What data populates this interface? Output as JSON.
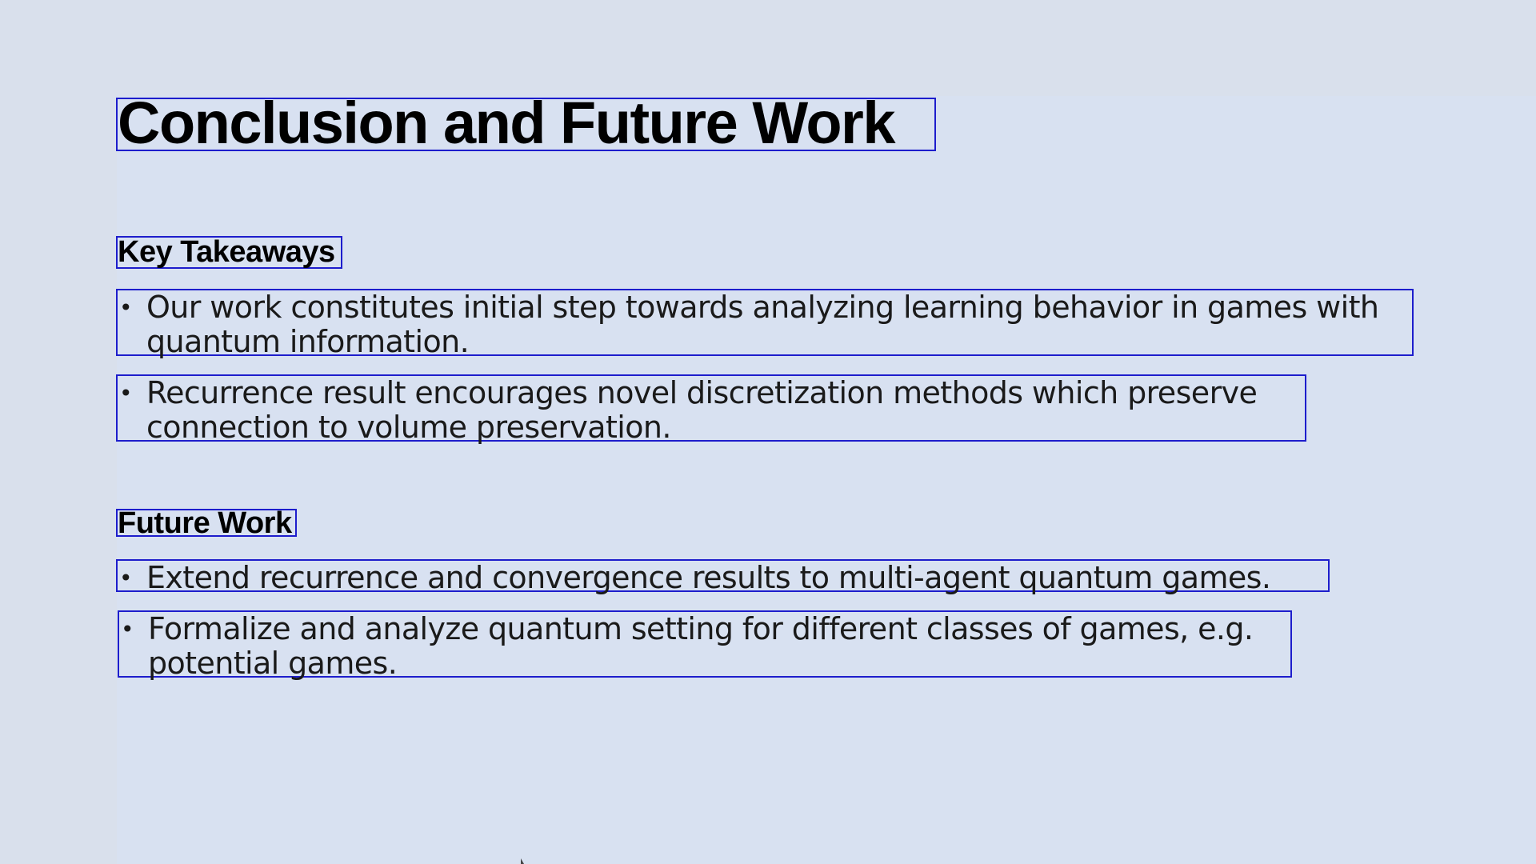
{
  "slide": {
    "title": "Conclusion and Future Work",
    "sections": [
      {
        "heading": "Key Takeaways",
        "bullets": [
          {
            "line1": "Our work constitutes initial step towards analyzing learning behavior in games with",
            "line2": "quantum information."
          },
          {
            "line1": "Recurrence result encourages novel discretization methods which preserve",
            "line2": "connection to volume preservation."
          }
        ]
      },
      {
        "heading": "Future Work",
        "bullets": [
          {
            "line1": "Extend recurrence and convergence results to multi-agent quantum games."
          },
          {
            "line1": "Formalize and analyze quantum setting for different classes of games, e.g.",
            "line2": "potential games."
          }
        ]
      }
    ],
    "bullet_glyph": "•"
  },
  "colors": {
    "background": "#d9e0ec",
    "slide_background": "#d8e1f1",
    "selection_outline": "#1d1dcc",
    "text": "#000000"
  }
}
